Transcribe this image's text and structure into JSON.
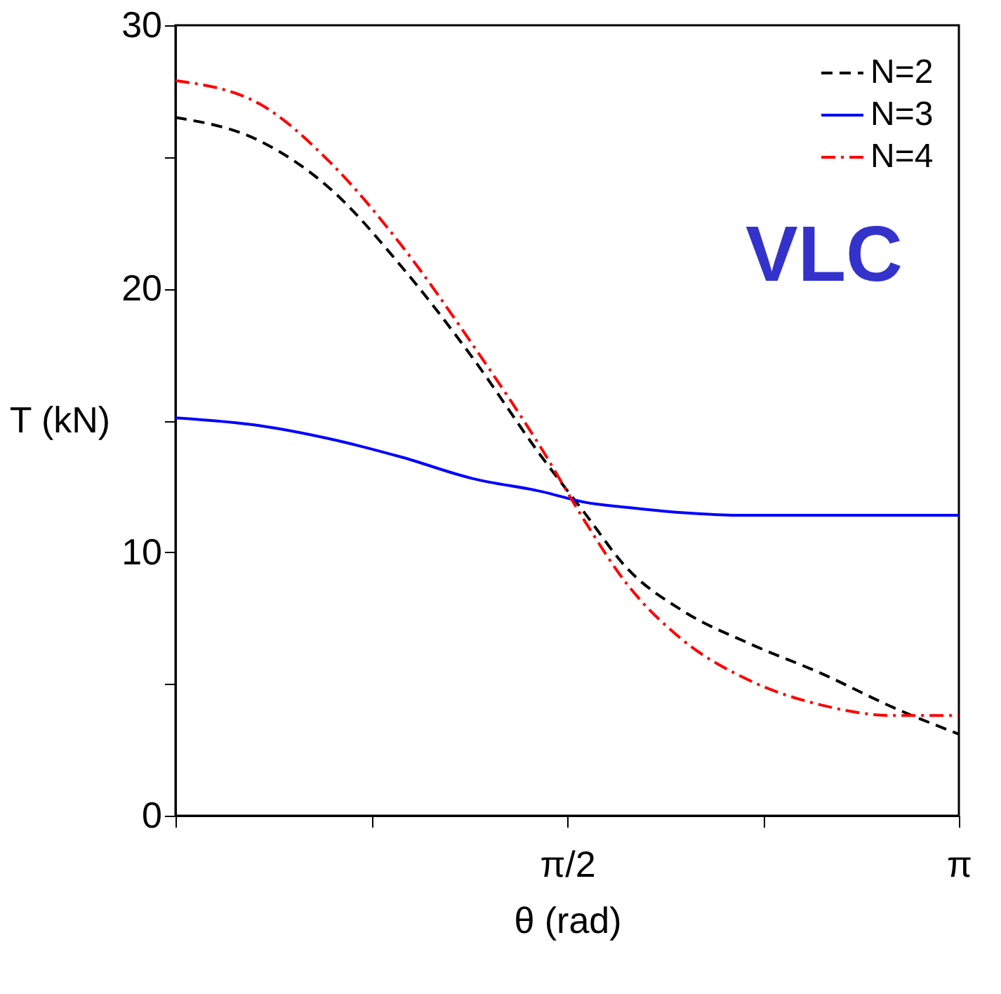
{
  "chart_data": {
    "type": "line",
    "xlabel": "θ (rad)",
    "ylabel": "T (kN)",
    "x": [
      0,
      0.34,
      0.62,
      0.91,
      1.19,
      1.47,
      1.64,
      1.81,
      2.03,
      2.31,
      2.59,
      2.88,
      3.14
    ],
    "series": [
      {
        "name": "N=2",
        "color": "#000000",
        "line_style": "dashed",
        "values": [
          26.5,
          25.6,
          23.8,
          20.8,
          17.4,
          13.6,
          11.5,
          9.4,
          7.8,
          6.5,
          5.4,
          4.1,
          3.1
        ]
      },
      {
        "name": "N=3",
        "color": "#0000ff",
        "line_style": "solid",
        "values": [
          15.1,
          14.8,
          14.3,
          13.6,
          12.8,
          12.3,
          11.9,
          11.7,
          11.5,
          11.4,
          11.4,
          11.4,
          11.4
        ]
      },
      {
        "name": "N=4",
        "color": "#ff0000",
        "line_style": "dashdot",
        "values": [
          27.9,
          27.0,
          24.8,
          21.6,
          17.9,
          13.9,
          11.2,
          8.8,
          6.7,
          5.1,
          4.2,
          3.8,
          3.8
        ]
      }
    ],
    "xlim": [
      0,
      3.1416
    ],
    "xticks": [
      {
        "value": 0,
        "label": null
      },
      {
        "value": 0.7854,
        "label": null
      },
      {
        "value": 1.5708,
        "label": "π/2"
      },
      {
        "value": 2.3562,
        "label": null
      },
      {
        "value": 3.1416,
        "label": "π"
      }
    ],
    "ylim": [
      0,
      30
    ],
    "yticks": [
      0,
      {
        "value": 5,
        "label": null
      },
      10,
      {
        "value": 15,
        "label": null
      },
      20,
      {
        "value": 25,
        "label": null
      },
      30
    ],
    "annotations": [
      "VLC"
    ],
    "legend": "top right",
    "grid": false,
    "marker": "none"
  }
}
